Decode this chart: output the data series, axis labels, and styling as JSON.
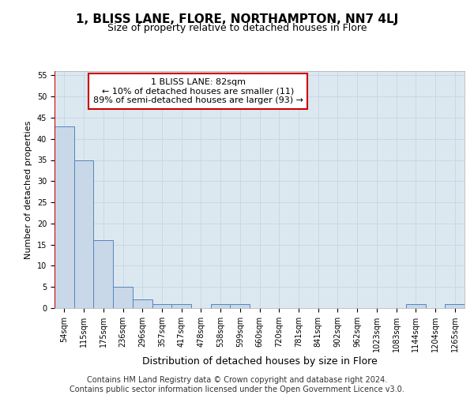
{
  "title": "1, BLISS LANE, FLORE, NORTHAMPTON, NN7 4LJ",
  "subtitle": "Size of property relative to detached houses in Flore",
  "xlabel": "Distribution of detached houses by size in Flore",
  "ylabel": "Number of detached properties",
  "footer_line1": "Contains HM Land Registry data © Crown copyright and database right 2024.",
  "footer_line2": "Contains public sector information licensed under the Open Government Licence v3.0.",
  "bin_labels": [
    "54sqm",
    "115sqm",
    "175sqm",
    "236sqm",
    "296sqm",
    "357sqm",
    "417sqm",
    "478sqm",
    "538sqm",
    "599sqm",
    "660sqm",
    "720sqm",
    "781sqm",
    "841sqm",
    "902sqm",
    "962sqm",
    "1023sqm",
    "1083sqm",
    "1144sqm",
    "1204sqm",
    "1265sqm"
  ],
  "bar_values": [
    43,
    35,
    16,
    5,
    2,
    1,
    1,
    0,
    1,
    1,
    0,
    0,
    0,
    0,
    0,
    0,
    0,
    0,
    1,
    0,
    1
  ],
  "bar_color": "#c8d8e8",
  "bar_edge_color": "#5585bb",
  "marker_line_color": "#cc0000",
  "annotation_text": "1 BLISS LANE: 82sqm\n← 10% of detached houses are smaller (11)\n89% of semi-detached houses are larger (93) →",
  "annotation_box_color": "#cc0000",
  "ylim": [
    0,
    56
  ],
  "yticks": [
    0,
    5,
    10,
    15,
    20,
    25,
    30,
    35,
    40,
    45,
    50,
    55
  ],
  "grid_color": "#c5d5e5",
  "bg_color": "#dce8f0",
  "title_fontsize": 11,
  "subtitle_fontsize": 9,
  "xlabel_fontsize": 9,
  "ylabel_fontsize": 8,
  "tick_fontsize": 7,
  "annotation_fontsize": 8,
  "footer_fontsize": 7
}
